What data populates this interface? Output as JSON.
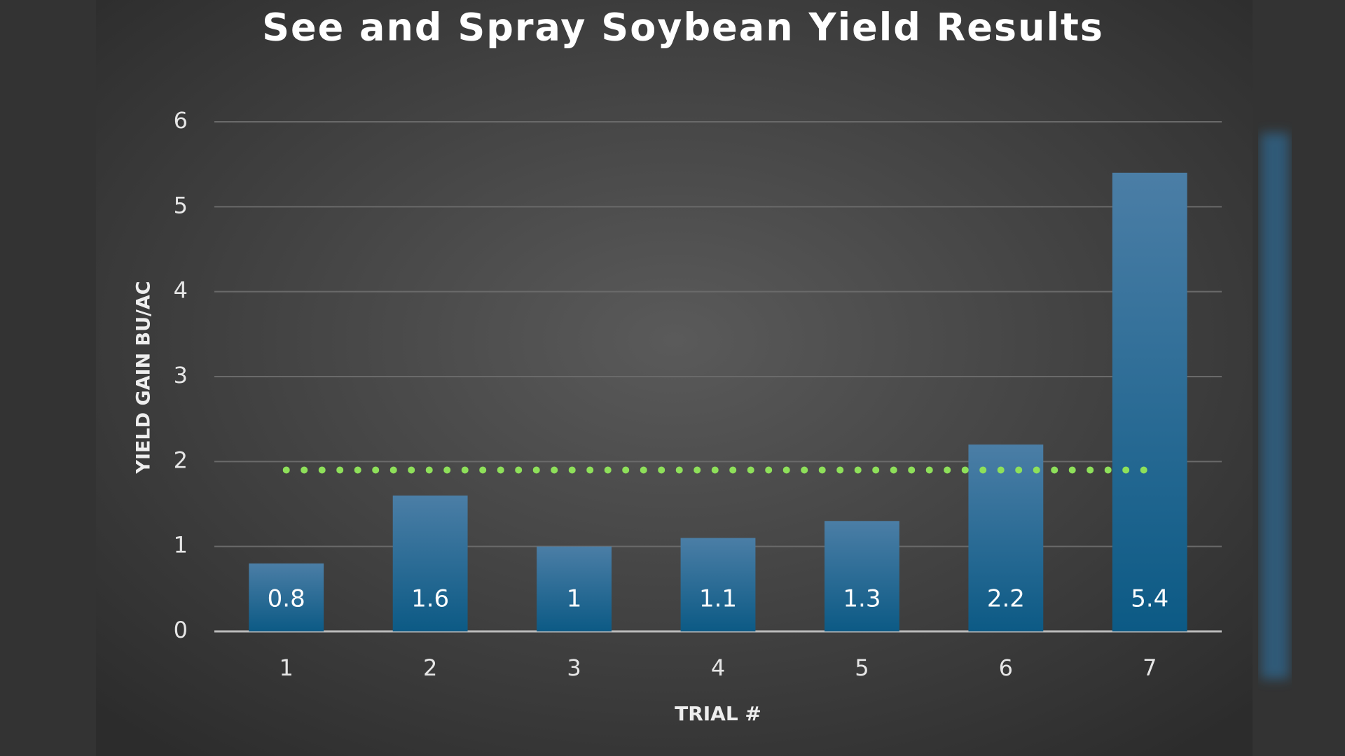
{
  "chart_data": {
    "type": "bar",
    "title": "See and Spray Soybean Yield Results",
    "x_label": "TRIAL #",
    "y_label": "YIELD GAIN BU/AC",
    "categories": [
      "1",
      "2",
      "3",
      "4",
      "5",
      "6",
      "7"
    ],
    "values": [
      0.8,
      1.6,
      1,
      1.1,
      1.3,
      2.2,
      5.4
    ],
    "color": "#1f6a96",
    "ylim": [
      0,
      6
    ],
    "yticks": [
      0,
      1,
      2,
      3,
      4,
      5,
      6
    ],
    "grid": true,
    "reference_line": {
      "value": 1.9,
      "color": "#8ee05a"
    }
  }
}
